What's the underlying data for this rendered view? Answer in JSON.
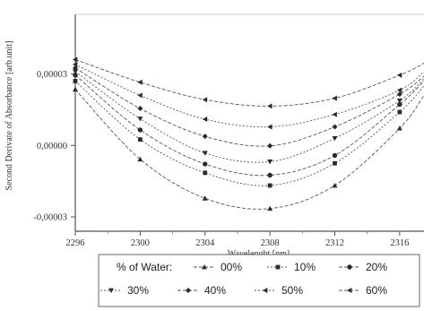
{
  "chart_data": {
    "type": "line",
    "xlabel": "Wavelenght [nm]",
    "ylabel": "Second Derivate of Absorbance [arb.unit]",
    "xlim": [
      2296,
      2317.5
    ],
    "ylim": [
      -3.6e-05,
      5.5e-05
    ],
    "x_ticks": [
      2296,
      2300,
      2304,
      2308,
      2312,
      2316
    ],
    "x_tick_labels": [
      "2296",
      "2300",
      "2304",
      "2308",
      "2312",
      "2316"
    ],
    "y_ticks": [
      3e-05,
      0.0,
      -3e-05
    ],
    "y_tick_labels": [
      "0,00003",
      "0,00000",
      "-0,00003"
    ],
    "marker_x": [
      2296,
      2300,
      2304,
      2308,
      2312,
      2316
    ],
    "legend_title": "% of Water:",
    "legend_position": "bottom",
    "grid": false,
    "series": [
      {
        "name": "00%",
        "marker": "triangle-up",
        "x": [
          2296,
          2300,
          2304,
          2308,
          2312,
          2316,
          2317.5
        ],
        "y": [
          2.35e-05,
          -5.8e-06,
          -2.22e-05,
          -2.65e-05,
          -1.68e-05,
          7.2e-06,
          2.1e-05
        ]
      },
      {
        "name": "10%",
        "marker": "square",
        "x": [
          2296,
          2300,
          2304,
          2308,
          2312,
          2316,
          2317.5
        ],
        "y": [
          2.7e-05,
          2.5e-06,
          -1.15e-05,
          -1.68e-05,
          -7.5e-06,
          1.4e-05,
          2.5e-05
        ]
      },
      {
        "name": "20%",
        "marker": "circle",
        "x": [
          2296,
          2300,
          2304,
          2308,
          2312,
          2316,
          2317.5
        ],
        "y": [
          2.95e-05,
          6.5e-06,
          -7.8e-06,
          -1.25e-05,
          -4.2e-06,
          1.72e-05,
          2.7e-05
        ]
      },
      {
        "name": "30%",
        "marker": "triangle-down",
        "x": [
          2296,
          2300,
          2304,
          2308,
          2312,
          2316,
          2317.5
        ],
        "y": [
          3.1e-05,
          1.12e-05,
          -3.2e-06,
          -6.8e-06,
          3e-06,
          1.88e-05,
          2.8e-05
        ]
      },
      {
        "name": "40%",
        "marker": "diamond",
        "x": [
          2296,
          2300,
          2304,
          2308,
          2312,
          2316,
          2317.5
        ],
        "y": [
          3.25e-05,
          1.55e-05,
          3.8e-06,
          -2e-07,
          7.8e-06,
          2.15e-05,
          2.9e-05
        ]
      },
      {
        "name": "50%",
        "marker": "triangle-left",
        "x": [
          2296,
          2300,
          2304,
          2308,
          2312,
          2316,
          2317.5
        ],
        "y": [
          3.4e-05,
          2.1e-05,
          1.1e-05,
          7.8e-06,
          1.3e-05,
          2.32e-05,
          3.1e-05
        ]
      },
      {
        "name": "60%",
        "marker": "triangle-left",
        "x": [
          2296,
          2300,
          2304,
          2308,
          2312,
          2316,
          2317.5
        ],
        "y": [
          3.6e-05,
          2.65e-05,
          1.92e-05,
          1.65e-05,
          1.98e-05,
          2.95e-05,
          3.45e-05
        ]
      }
    ]
  }
}
